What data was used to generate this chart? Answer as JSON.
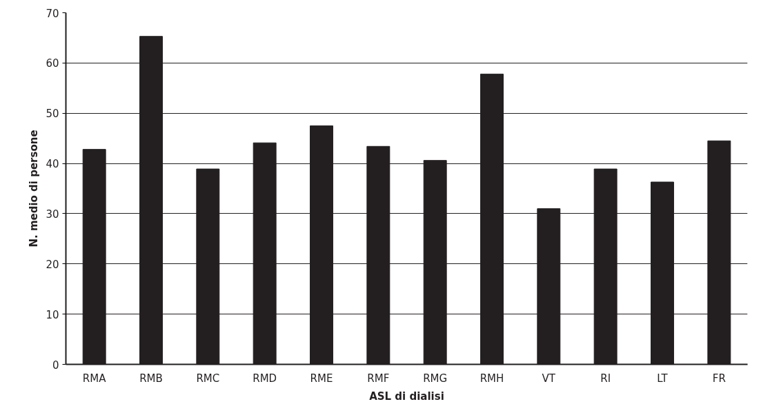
{
  "chart_data": {
    "type": "bar",
    "xlabel": "ASL di dialisi",
    "ylabel": "N. medio di persone",
    "categories": [
      "RMA",
      "RMB",
      "RMC",
      "RMD",
      "RME",
      "RMF",
      "RMG",
      "RMH",
      "VT",
      "RI",
      "LT",
      "FR"
    ],
    "values": [
      42.8,
      65.3,
      38.9,
      44.1,
      47.5,
      43.4,
      40.6,
      57.8,
      31.0,
      38.9,
      36.3,
      44.5
    ],
    "color": "#231f20",
    "ylim": [
      0,
      70
    ],
    "yticks": [
      0,
      10,
      20,
      30,
      40,
      50,
      60,
      70
    ],
    "grid": "y"
  }
}
